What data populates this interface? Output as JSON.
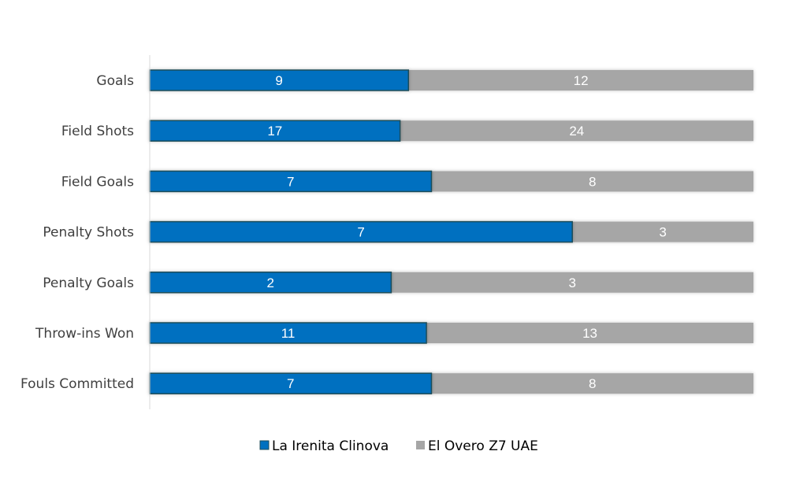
{
  "chart_data": {
    "type": "bar",
    "orientation": "horizontal",
    "stacking": "percent",
    "categories": [
      "Goals",
      "Field Shots",
      "Field Goals",
      "Penalty Shots",
      "Penalty Goals",
      "Throw-ins Won",
      "Fouls Committed"
    ],
    "series": [
      {
        "name": "La Irenita Clinova",
        "color": "#0070c0",
        "values": [
          9,
          17,
          7,
          7,
          2,
          11,
          7
        ]
      },
      {
        "name": "El Overo Z7 UAE",
        "color": "#a6a6a6",
        "values": [
          12,
          24,
          8,
          3,
          3,
          13,
          8
        ]
      }
    ],
    "data_labels": true,
    "grid": false,
    "legend": "bottom"
  }
}
